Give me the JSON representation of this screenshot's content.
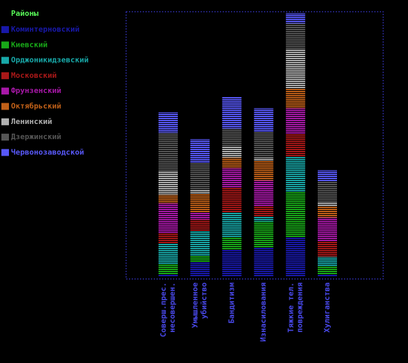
{
  "chart_data": {
    "type": "stacked_bar",
    "legend_title": "Районы",
    "legend_position": "upper left",
    "categories": [
      [
        "Соверш.прес.",
        "несовершен."
      ],
      [
        "Умышленное",
        "убийство"
      ],
      [
        "Бандитизм"
      ],
      [
        "Изнасилования"
      ],
      [
        "Тяжкие тел.",
        "повреждения"
      ],
      [
        "Хулиганства"
      ]
    ],
    "series": [
      {
        "name": "Коминтерновский",
        "color": "#1818a8",
        "values": [
          3,
          21,
          38,
          42,
          57,
          3
        ]
      },
      {
        "name": "Киевский",
        "color": "#18a818",
        "values": [
          15,
          8,
          18,
          37,
          65,
          12
        ]
      },
      {
        "name": "Орджоникидзевский",
        "color": "#18a8a8",
        "values": [
          30,
          37,
          36,
          7,
          52,
          13
        ]
      },
      {
        "name": "Московский",
        "color": "#a81818",
        "values": [
          15,
          16,
          37,
          15,
          33,
          22
        ]
      },
      {
        "name": "Фрунзенский",
        "color": "#a818a8",
        "values": [
          43,
          10,
          28,
          38,
          37,
          35
        ]
      },
      {
        "name": "Октябрьский",
        "color": "#c06018",
        "values": [
          12,
          27,
          15,
          28,
          28,
          17
        ]
      },
      {
        "name": "Ленинский",
        "color": "#b0b0b0",
        "values": [
          35,
          7,
          17,
          5,
          57,
          6
        ]
      },
      {
        "name": "Дзержинский",
        "color": "#555555",
        "values": [
          55,
          38,
          25,
          37,
          38,
          30
        ]
      },
      {
        "name": "Червонозаводской",
        "color": "#5858f8",
        "values": [
          30,
          35,
          47,
          35,
          15,
          16
        ]
      }
    ]
  }
}
